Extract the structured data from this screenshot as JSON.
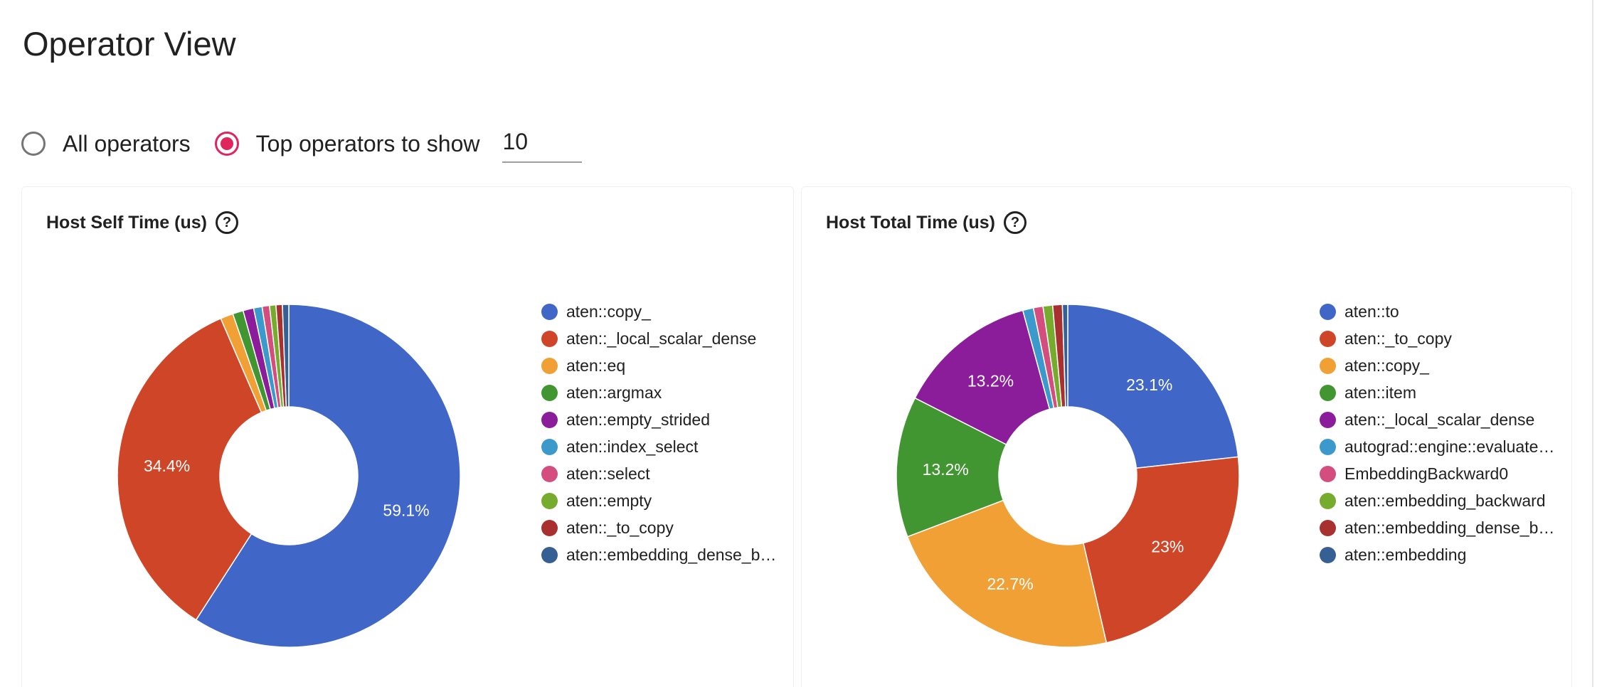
{
  "page": {
    "title": "Operator View"
  },
  "controls": {
    "all_label": "All operators",
    "top_label": "Top operators to show",
    "top_value": "10",
    "selected": "top"
  },
  "chart_data": [
    {
      "type": "pie",
      "title": "Host Self Time (us)",
      "donut": true,
      "legend_position": "right",
      "labels": [
        "aten::copy_",
        "aten::_local_scalar_dense",
        "aten::eq",
        "aten::argmax",
        "aten::empty_strided",
        "aten::index_select",
        "aten::select",
        "aten::empty",
        "aten::_to_copy",
        "aten::embedding_dense_b…"
      ],
      "values": [
        59.1,
        34.4,
        1.2,
        1.0,
        1.0,
        0.8,
        0.7,
        0.6,
        0.6,
        0.6
      ],
      "value_labels": [
        "59.1%",
        "34.4%",
        "",
        "",
        "",
        "",
        "",
        "",
        "",
        ""
      ],
      "colors": [
        "#4066c8",
        "#cf4527",
        "#f0a035",
        "#419632",
        "#8b1d9a",
        "#3c99cc",
        "#d34d7f",
        "#76ab2d",
        "#a8302e",
        "#365f94"
      ]
    },
    {
      "type": "pie",
      "title": "Host Total Time (us)",
      "donut": true,
      "legend_position": "right",
      "labels": [
        "aten::to",
        "aten::_to_copy",
        "aten::copy_",
        "aten::item",
        "aten::_local_scalar_dense",
        "autograd::engine::evaluate…",
        "EmbeddingBackward0",
        "aten::embedding_backward",
        "aten::embedding_dense_b…",
        "aten::embedding"
      ],
      "values": [
        23.1,
        23.0,
        22.7,
        13.2,
        13.2,
        1.0,
        0.9,
        0.9,
        0.9,
        0.5
      ],
      "value_labels": [
        "23.1%",
        "23%",
        "22.7%",
        "13.2%",
        "13.2%",
        "",
        "",
        "",
        "",
        ""
      ],
      "colors": [
        "#4066c8",
        "#cf4527",
        "#f0a035",
        "#419632",
        "#8b1d9a",
        "#3c99cc",
        "#d34d7f",
        "#76ab2d",
        "#a8302e",
        "#365f94"
      ]
    }
  ]
}
